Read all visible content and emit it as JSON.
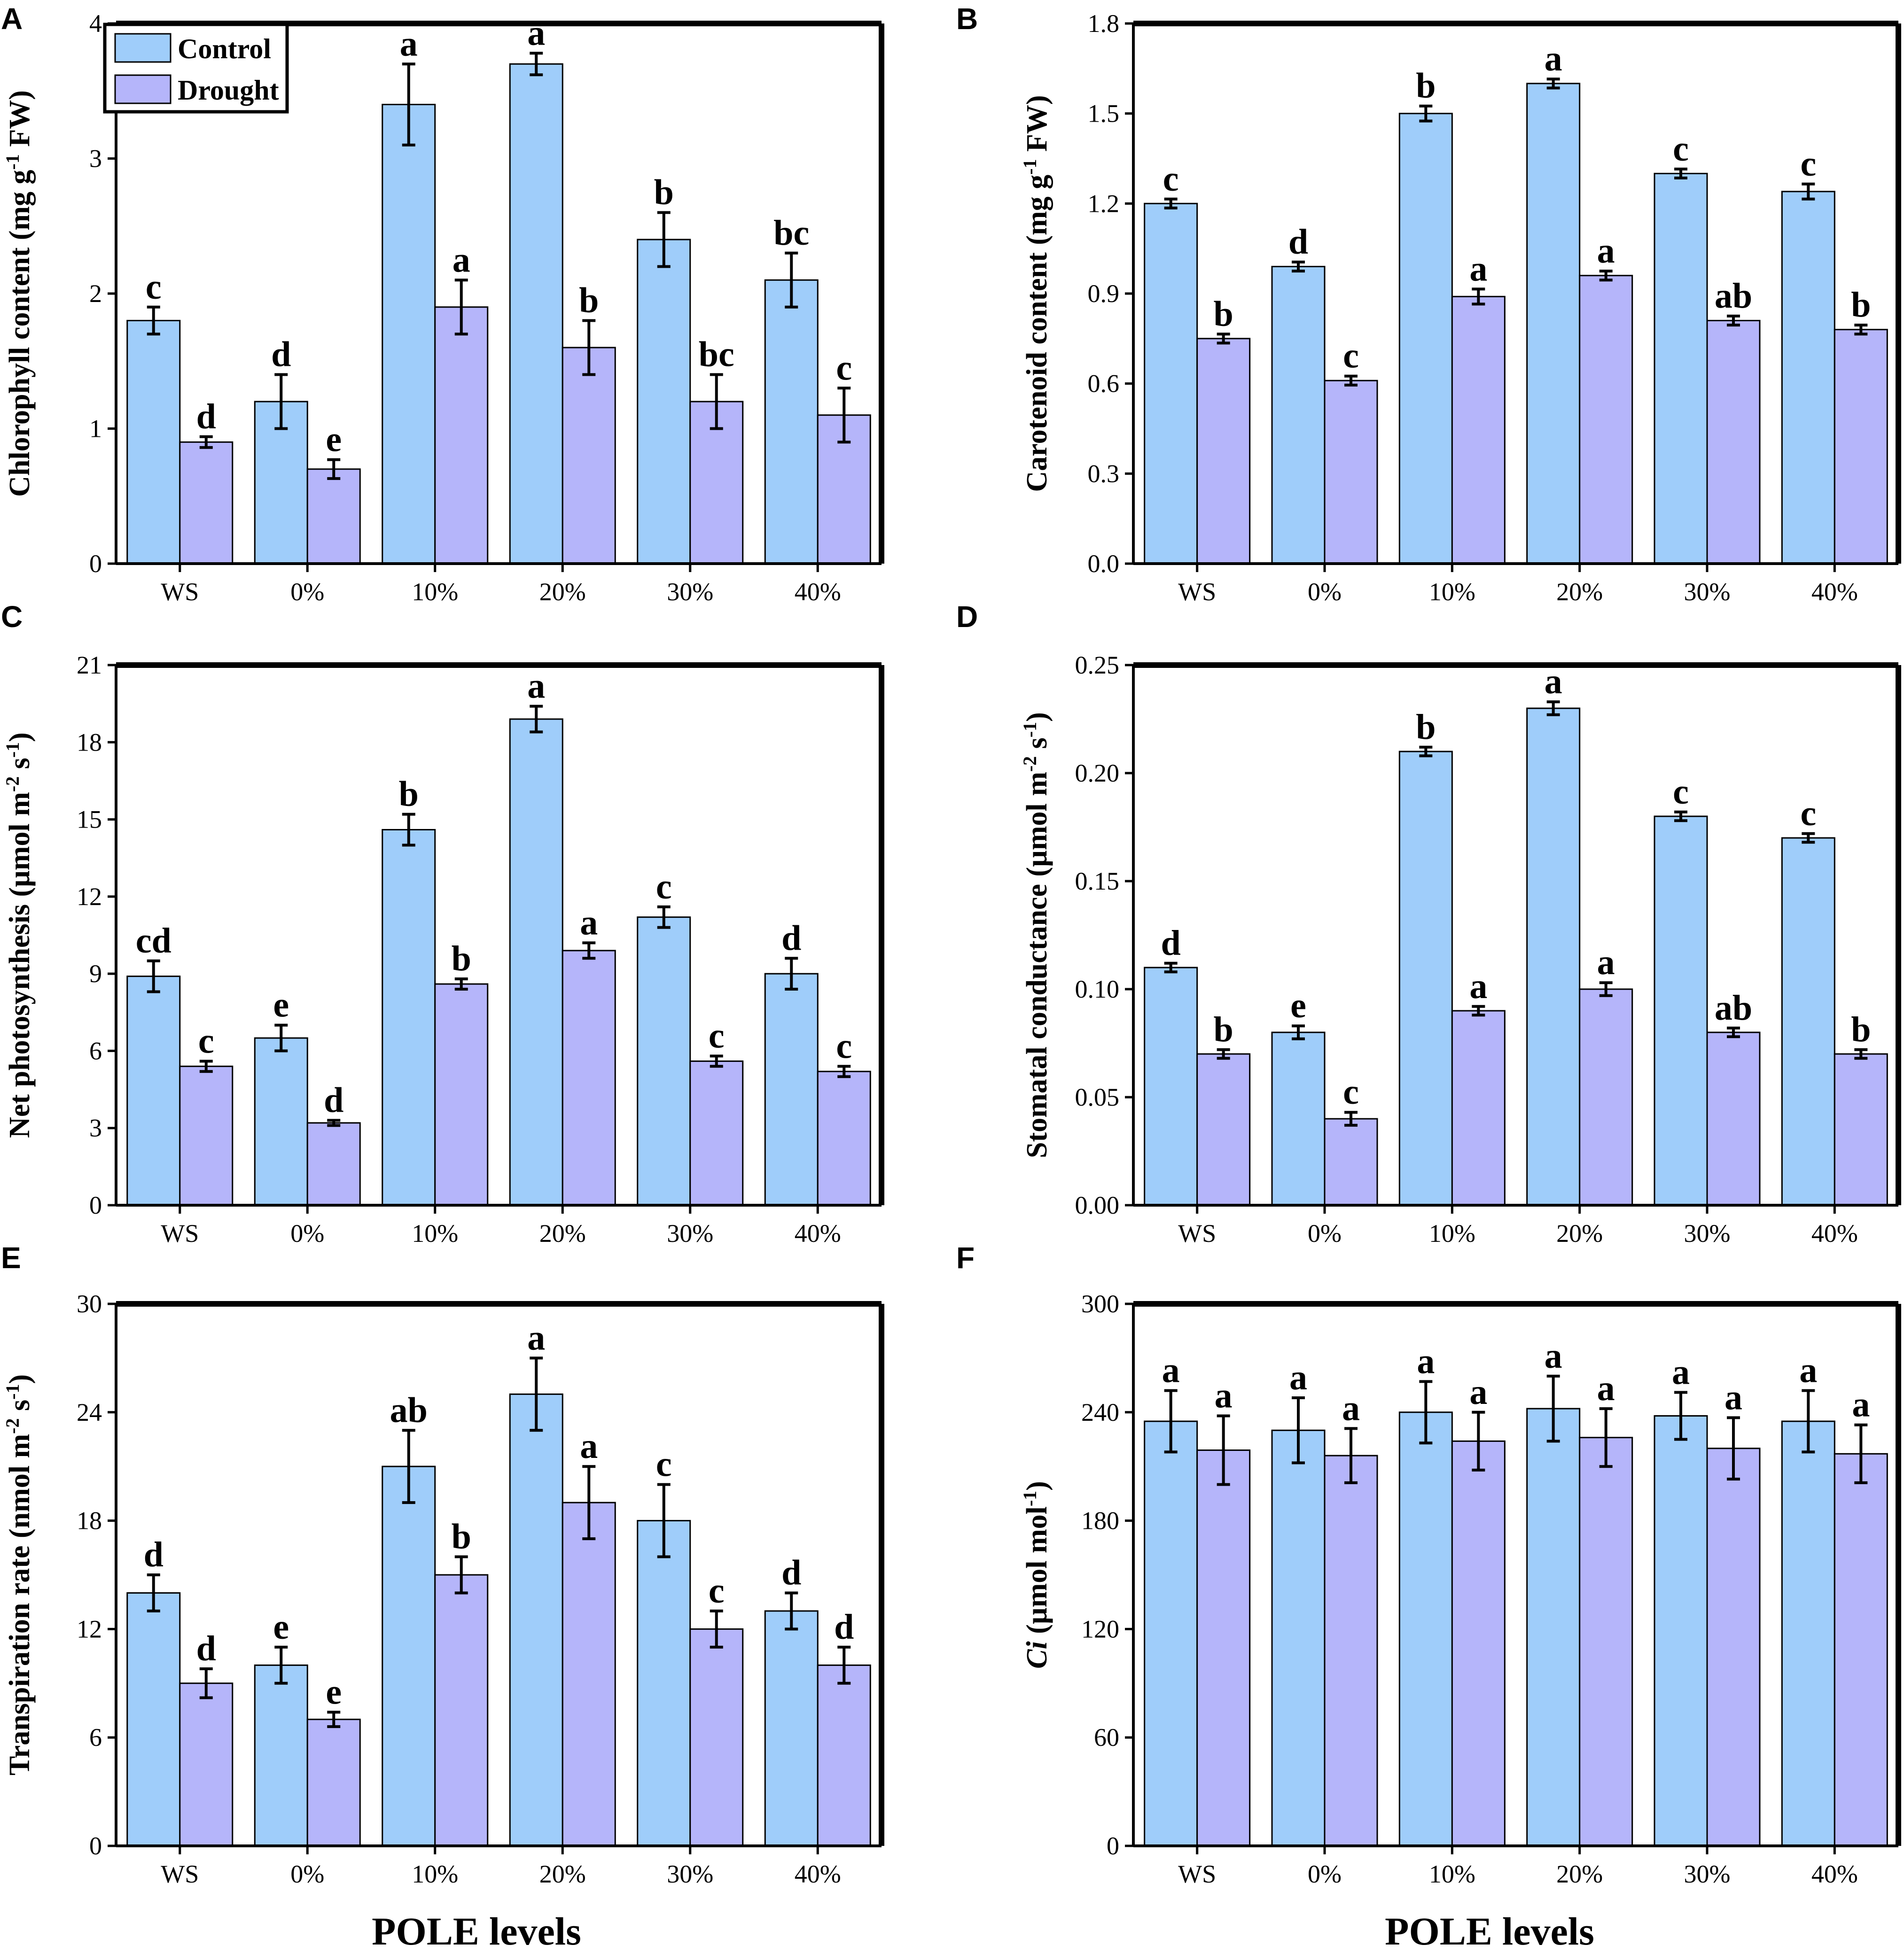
{
  "colors": {
    "control": "#9fcdfa",
    "drought": "#b5b5fa",
    "ink": "#000000"
  },
  "legend": {
    "control": "Control",
    "drought": "Drought"
  },
  "xaxis_caption": "POLE levels",
  "chart_data": [
    {
      "letter": "A",
      "type": "bar",
      "title": "",
      "ylabel": "Chlorophyll content (mg g-1 FW)",
      "ylabel_parts": {
        "pre": "Chlorophyll content (mg g",
        "sup": "-1",
        "post": " FW)"
      },
      "xlabel": "",
      "categories": [
        "WS",
        "0%",
        "10%",
        "20%",
        "30%",
        "40%"
      ],
      "ylim": [
        0,
        4
      ],
      "yticks": [
        "0",
        "1",
        "2",
        "3",
        "4"
      ],
      "legend": "top-left",
      "series": [
        {
          "name": "Control",
          "values": [
            1.8,
            1.2,
            3.4,
            3.7,
            2.4,
            2.1
          ],
          "errors": [
            0.1,
            0.2,
            0.3,
            0.08,
            0.2,
            0.2
          ],
          "letters": [
            "c",
            "d",
            "a",
            "a",
            "b",
            "bc"
          ]
        },
        {
          "name": "Drought",
          "values": [
            0.9,
            0.7,
            1.9,
            1.6,
            1.2,
            1.1
          ],
          "errors": [
            0.04,
            0.07,
            0.2,
            0.2,
            0.2,
            0.2
          ],
          "letters": [
            "d",
            "e",
            "a",
            "b",
            "bc",
            "c"
          ]
        }
      ]
    },
    {
      "letter": "B",
      "type": "bar",
      "title": "",
      "ylabel": "Carotenoid content (mg g-1 FW)",
      "ylabel_parts": {
        "pre": "Carotenoid content (mg g",
        "sup": "-1",
        "post": " FW)"
      },
      "xlabel": "",
      "categories": [
        "WS",
        "0%",
        "10%",
        "20%",
        "30%",
        "40%"
      ],
      "ylim": [
        0,
        1.8
      ],
      "yticks": [
        "0.0",
        "0.3",
        "0.6",
        "0.9",
        "1.2",
        "1.5",
        "1.8"
      ],
      "series": [
        {
          "name": "Control",
          "values": [
            1.2,
            0.99,
            1.5,
            1.6,
            1.3,
            1.24
          ],
          "errors": [
            0.015,
            0.015,
            0.025,
            0.015,
            0.015,
            0.025
          ],
          "letters": [
            "c",
            "d",
            "b",
            "a",
            "c",
            "c"
          ]
        },
        {
          "name": "Drought",
          "values": [
            0.75,
            0.61,
            0.89,
            0.96,
            0.81,
            0.78
          ],
          "errors": [
            0.015,
            0.015,
            0.025,
            0.015,
            0.015,
            0.015
          ],
          "letters": [
            "b",
            "c",
            "a",
            "a",
            "ab",
            "b"
          ]
        }
      ]
    },
    {
      "letter": "C",
      "type": "bar",
      "title": "",
      "ylabel": "Net photosynthesis (µmol m-2 s-1)",
      "ylabel_parts": {
        "pre": "Net photosynthesis (µmol m",
        "sup": "-2",
        "mid": " s",
        "sup2": "-1",
        "post": ")"
      },
      "xlabel": "",
      "categories": [
        "WS",
        "0%",
        "10%",
        "20%",
        "30%",
        "40%"
      ],
      "ylim": [
        0,
        21
      ],
      "yticks": [
        "0",
        "3",
        "6",
        "9",
        "12",
        "15",
        "18",
        "21"
      ],
      "series": [
        {
          "name": "Control",
          "values": [
            8.9,
            6.5,
            14.6,
            18.9,
            11.2,
            9.0
          ],
          "errors": [
            0.6,
            0.5,
            0.6,
            0.5,
            0.4,
            0.6
          ],
          "letters": [
            "cd",
            "e",
            "b",
            "a",
            "c",
            "d"
          ]
        },
        {
          "name": "Drought",
          "values": [
            5.4,
            3.2,
            8.6,
            9.9,
            5.6,
            5.2
          ],
          "errors": [
            0.2,
            0.1,
            0.2,
            0.3,
            0.2,
            0.2
          ],
          "letters": [
            "c",
            "d",
            "b",
            "a",
            "c",
            "c"
          ]
        }
      ]
    },
    {
      "letter": "D",
      "type": "bar",
      "title": "",
      "ylabel": "Stomatal conductance (µmol m-2 s-1)",
      "ylabel_parts": {
        "pre": "Stomatal conductance (µmol m",
        "sup": "-2",
        "mid": " s",
        "sup2": "-1",
        "post": ")"
      },
      "xlabel": "",
      "categories": [
        "WS",
        "0%",
        "10%",
        "20%",
        "30%",
        "40%"
      ],
      "ylim": [
        0,
        0.25
      ],
      "yticks": [
        "0.00",
        "0.05",
        "0.10",
        "0.15",
        "0.20",
        "0.25"
      ],
      "series": [
        {
          "name": "Control",
          "values": [
            0.11,
            0.08,
            0.21,
            0.23,
            0.18,
            0.17
          ],
          "errors": [
            0.002,
            0.003,
            0.002,
            0.003,
            0.002,
            0.002
          ],
          "letters": [
            "d",
            "e",
            "b",
            "a",
            "c",
            "c"
          ]
        },
        {
          "name": "Drought",
          "values": [
            0.07,
            0.04,
            0.09,
            0.1,
            0.08,
            0.07
          ],
          "errors": [
            0.002,
            0.003,
            0.002,
            0.003,
            0.002,
            0.002
          ],
          "letters": [
            "b",
            "c",
            "a",
            "a",
            "ab",
            "b"
          ]
        }
      ]
    },
    {
      "letter": "E",
      "type": "bar",
      "title": "",
      "ylabel": "Transpiration rate (nmol m-2 s-1)",
      "ylabel_parts": {
        "pre": "Transpiration rate (nmol m",
        "sup": "-2",
        "mid": " s",
        "sup2": "-1",
        "post": ")"
      },
      "xlabel": "POLE levels",
      "categories": [
        "WS",
        "0%",
        "10%",
        "20%",
        "30%",
        "40%"
      ],
      "ylim": [
        0,
        30
      ],
      "yticks": [
        "0",
        "6",
        "12",
        "18",
        "24",
        "30"
      ],
      "series": [
        {
          "name": "Control",
          "values": [
            14,
            10,
            21,
            25,
            18,
            13
          ],
          "errors": [
            1.0,
            1.0,
            2.0,
            2.0,
            2.0,
            1.0
          ],
          "letters": [
            "d",
            "e",
            "ab",
            "a",
            "c",
            "d"
          ]
        },
        {
          "name": "Drought",
          "values": [
            9,
            7,
            15,
            19,
            12,
            10
          ],
          "errors": [
            0.8,
            0.4,
            1.0,
            2.0,
            1.0,
            1.0
          ],
          "letters": [
            "d",
            "e",
            "b",
            "a",
            "c",
            "d"
          ]
        }
      ]
    },
    {
      "letter": "F",
      "type": "bar",
      "title": "",
      "ylabel": "Ci (µmol mol-1)",
      "ylabel_parts": {
        "pre_italic": "Ci",
        "pre": " (µmol mol",
        "sup": "-1",
        "post": ")"
      },
      "xlabel": "POLE levels",
      "categories": [
        "WS",
        "0%",
        "10%",
        "20%",
        "30%",
        "40%"
      ],
      "ylim": [
        0,
        300
      ],
      "yticks": [
        "0",
        "60",
        "120",
        "180",
        "240",
        "300"
      ],
      "series": [
        {
          "name": "Control",
          "values": [
            235,
            230,
            240,
            242,
            238,
            235
          ],
          "errors": [
            17,
            18,
            17,
            18,
            13,
            17
          ],
          "letters": [
            "a",
            "a",
            "a",
            "a",
            "a",
            "a"
          ]
        },
        {
          "name": "Drought",
          "values": [
            219,
            216,
            224,
            226,
            220,
            217
          ],
          "errors": [
            19,
            15,
            16,
            16,
            17,
            16
          ],
          "letters": [
            "a",
            "a",
            "a",
            "a",
            "a",
            "a"
          ]
        }
      ]
    }
  ]
}
